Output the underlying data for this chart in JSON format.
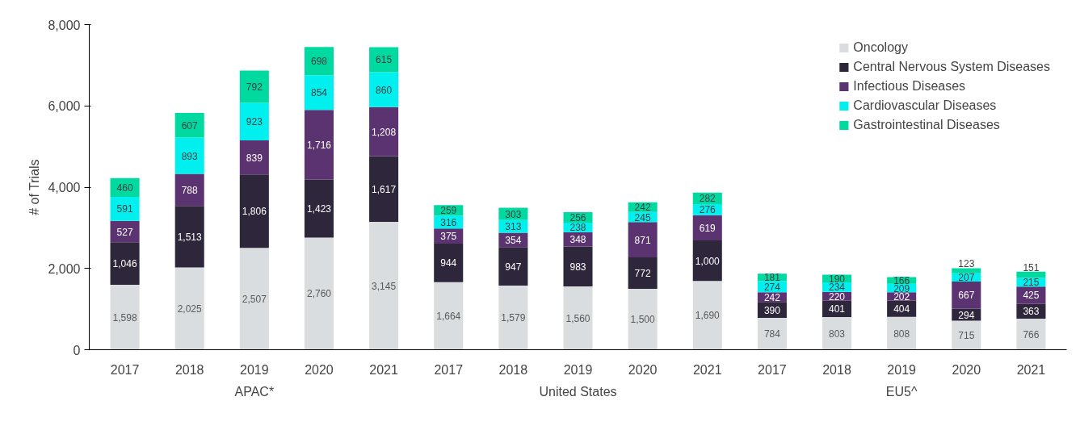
{
  "chart_data": {
    "type": "bar",
    "stacked": true,
    "ylabel": "# of Trials",
    "categories": [
      "2017",
      "2018",
      "2019",
      "2020",
      "2021",
      "2017",
      "2018",
      "2019",
      "2020",
      "2021",
      "2017",
      "2018",
      "2019",
      "2020",
      "2021"
    ],
    "series": [
      {
        "name": "Oncology",
        "color": "#d9dde0",
        "values": [
          1598,
          2025,
          2507,
          2760,
          3145,
          1664,
          1579,
          1560,
          1500,
          1690,
          784,
          803,
          808,
          715,
          766
        ],
        "value_labels": [
          "1,598",
          "2,025",
          "2,507",
          "2,760",
          "3,145",
          "1,664",
          "1,579",
          "1,560",
          "1,500",
          "1,690",
          "784",
          "803",
          "808",
          "715",
          "766"
        ]
      },
      {
        "name": "Central Nervous System Diseases",
        "color": "#2e263b",
        "values": [
          1046,
          1513,
          1806,
          1423,
          1617,
          944,
          947,
          983,
          772,
          1000,
          390,
          401,
          404,
          294,
          363
        ],
        "value_labels": [
          "1,046",
          "1,513",
          "1,806",
          "1,423",
          "1,617",
          "944",
          "947",
          "983",
          "772",
          "1,000",
          "390",
          "401",
          "404",
          "294",
          "363"
        ]
      },
      {
        "name": "Infectious Diseases",
        "color": "#5b3370",
        "values": [
          527,
          788,
          839,
          1716,
          1208,
          375,
          354,
          348,
          871,
          619,
          242,
          220,
          202,
          667,
          425
        ],
        "value_labels": [
          "527",
          "788",
          "839",
          "1,716",
          "1,208",
          "375",
          "354",
          "348",
          "871",
          "619",
          "242",
          "220",
          "202",
          "667",
          "425"
        ]
      },
      {
        "name": "Cardiovascular Diseases",
        "color": "#00f0f0",
        "values": [
          591,
          893,
          923,
          854,
          860,
          316,
          313,
          238,
          245,
          276,
          274,
          234,
          209,
          207,
          215
        ],
        "value_labels": [
          "591",
          "893",
          "923",
          "854",
          "860",
          "316",
          "313",
          "238",
          "245",
          "276",
          "274",
          "234",
          "209",
          "207",
          "215"
        ]
      },
      {
        "name": "Gastrointestinal Diseases",
        "color": "#00d9a0",
        "values": [
          460,
          607,
          792,
          698,
          615,
          259,
          303,
          256,
          242,
          282,
          181,
          190,
          166,
          123,
          151
        ],
        "value_labels": [
          "460",
          "607",
          "792",
          "698",
          "615",
          "259",
          "303",
          "256",
          "242",
          "282",
          "181",
          "190",
          "166",
          "123",
          "151"
        ]
      }
    ],
    "ylim": [
      0,
      8000
    ],
    "yticks": [
      {
        "value": 0,
        "label": "0"
      },
      {
        "value": 2000,
        "label": "2,000"
      },
      {
        "value": 4000,
        "label": "4,000"
      },
      {
        "value": 6000,
        "label": "6,000"
      },
      {
        "value": 8000,
        "label": "8,000"
      }
    ],
    "annotations": [
      "APAC*",
      "United States",
      "EU5^"
    ],
    "legend": "top right",
    "grid": false
  }
}
